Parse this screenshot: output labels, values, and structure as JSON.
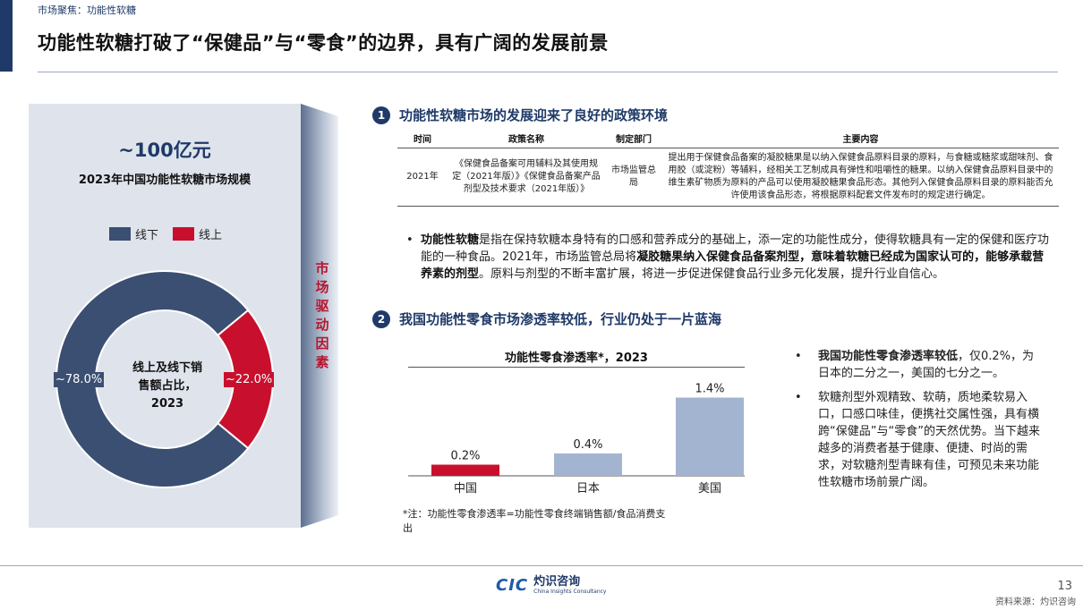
{
  "header": {
    "section_tag": "市场聚焦：功能性软糖",
    "title": "功能性软糖打破了“保健品”与“零食”的边界，具有广阔的发展前景"
  },
  "left_panel": {
    "market_size": "~100亿元",
    "market_caption": "2023年中国功能性软糖市场规模",
    "center_label_line1": "线上及线下销",
    "center_label_line2": "售额占比，",
    "center_label_line3": "2023"
  },
  "driver_label": "市场驱动因素",
  "section1": {
    "num": "1",
    "title": "功能性软糖市场的发展迎来了良好的政策环境",
    "table_headers": [
      "时间",
      "政策名称",
      "制定部门",
      "主要内容"
    ],
    "row": {
      "time": "2021年",
      "name": "《保健食品备案可用辅料及其使用规定（2021年版）》《保健食品备案产品剂型及技术要求（2021年版）》",
      "dept": "市场监管总局",
      "content": "提出用于保健食品备案的凝胶糖果是以纳入保健食品原料目录的原料，与食糖或糖浆或甜味剂、食用胶（或淀粉）等辅料，经相关工艺制成具有弹性和咀嚼性的糖果。以纳入保健食品原料目录中的维生素矿物质为原料的产品可以使用凝胶糖果食品形态。其他列入保健食品原料目录的原料能否允许使用该食品形态，将根据原料配套文件发布时的规定进行确定。"
    },
    "bullet_bold1": "功能性软糖",
    "bullet_text1": "是指在保持软糖本身特有的口感和营养成分的基础上，添一定的功能性成分，使得软糖具有一定的保健和医疗功能的一种食品。2021年，市场监管总局将",
    "bullet_bold2": "凝胶糖果纳入保健食品备案剂型，意味着软糖已经成为国家认可的，能够承载营养素的剂型",
    "bullet_text2": "。原料与剂型的不断丰富扩展，将进一步促进保健食品行业多元化发展，提升行业自信心。"
  },
  "section2": {
    "num": "2",
    "title": "我国功能性零食市场渗透率较低，行业仍处于一片蓝海",
    "footnote": "*注：功能性零食渗透率=功能性零食终端销售额/食品消费支出",
    "bullet1_bold": "我国功能性零食渗透率较低",
    "bullet1_text": "，仅0.2%，为日本的二分之一，美国的七分之一。",
    "bullet2_text": "软糖剂型外观精致、软萌，质地柔软易入口，口感口味佳，便携社交属性强，具有横跨“保健品”与“零食”的天然优势。当下越来越多的消费者基于健康、便捷、时尚的需求，对软糖剂型青睐有佳，可预见未来功能性软糖市场前景广阔。"
  },
  "chart_data": [
    {
      "type": "pie",
      "variant": "donut",
      "categories": [
        "线下",
        "线上"
      ],
      "values": [
        78.0,
        22.0
      ],
      "value_labels": [
        "~78.0%",
        "~22.0%"
      ],
      "colors": [
        "#3b4f72",
        "#c8102e"
      ],
      "legend_position": "top"
    },
    {
      "type": "bar",
      "title": "功能性零食渗透率*，2023",
      "categories": [
        "中国",
        "日本",
        "美国"
      ],
      "values": [
        0.2,
        0.4,
        1.4
      ],
      "value_labels": [
        "0.2%",
        "0.4%",
        "1.4%"
      ],
      "colors": [
        "#c8102e",
        "#a3b4d0",
        "#a3b4d0"
      ],
      "ylim": [
        0,
        1.6
      ],
      "grid": false
    }
  ],
  "footer": {
    "logo_mark": "CIC",
    "logo_cn": "灼识咨询",
    "logo_en": "China Insights Consultancy",
    "page_number": "13",
    "source": "资料来源：灼识咨询"
  }
}
